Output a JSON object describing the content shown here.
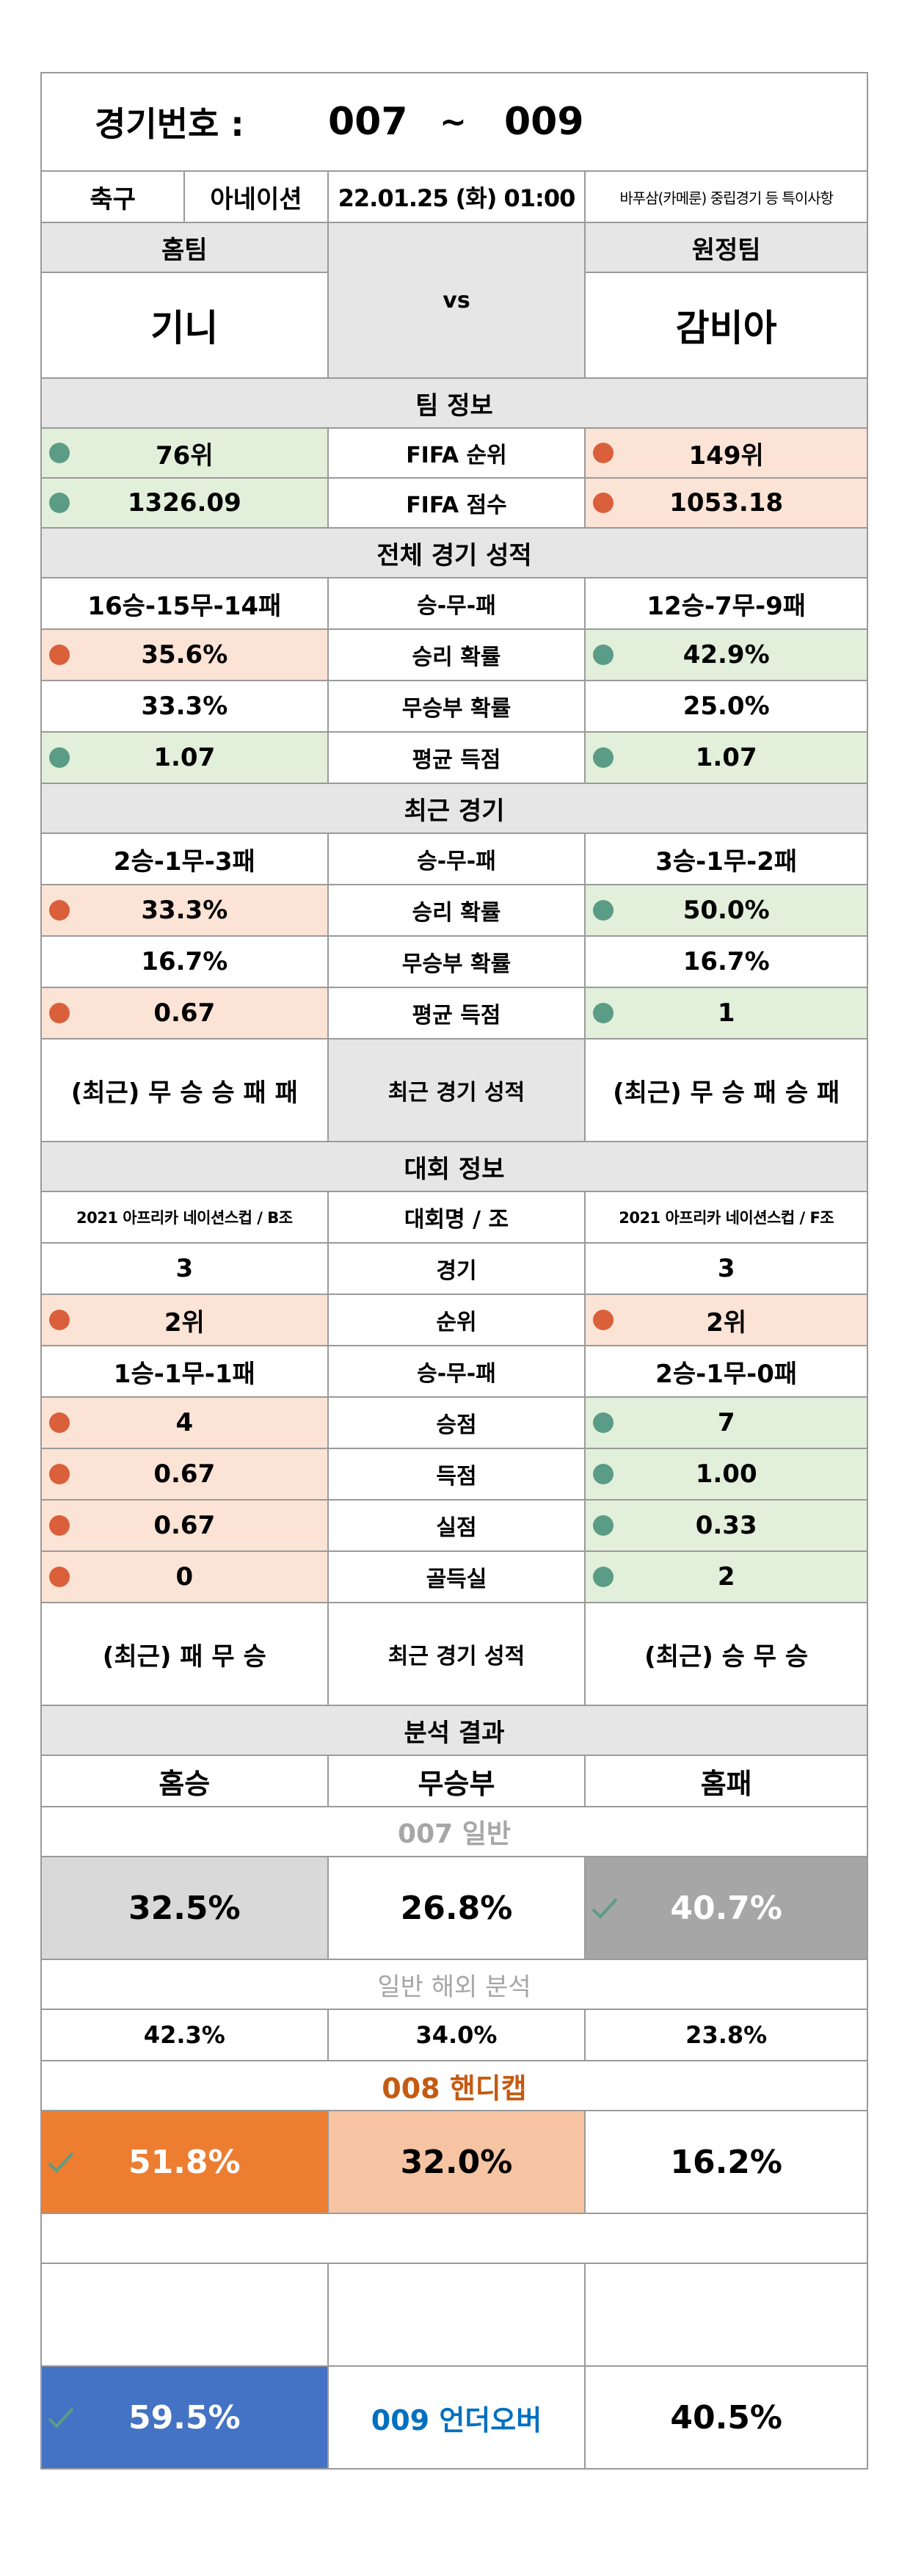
{
  "header": {
    "label": "경기번호 :",
    "from": "007",
    "sep": "~",
    "to": "009"
  },
  "match_info": {
    "sport": "축구",
    "league": "아네이션",
    "datetime": "22.01.25 (화) 01:00",
    "note": "바푸삼(카메룬) 중립경기 등 특이사항"
  },
  "teams": {
    "home_label": "홈팀",
    "away_label": "원정팀",
    "home": "기니",
    "vs": "vs",
    "away": "감비아"
  },
  "team_info": {
    "title": "팀 정보",
    "rows": [
      {
        "label": "FIFA 순위",
        "home": "76위",
        "away": "149위"
      },
      {
        "label": "FIFA 점수",
        "home": "1326.09",
        "away": "1053.18"
      }
    ]
  },
  "overall": {
    "title": "전체 경기 성적",
    "rows": [
      {
        "label": "승-무-패",
        "home": "16승-15무-14패",
        "away": "12승-7무-9패"
      },
      {
        "label": "승리 확률",
        "home": "35.6%",
        "away": "42.9%"
      },
      {
        "label": "무승부 확률",
        "home": "33.3%",
        "away": "25.0%"
      },
      {
        "label": "평균 득점",
        "home": "1.07",
        "away": "1.07"
      }
    ]
  },
  "recent": {
    "title": "최근 경기",
    "rows": [
      {
        "label": "승-무-패",
        "home": "2승-1무-3패",
        "away": "3승-1무-2패"
      },
      {
        "label": "승리 확률",
        "home": "33.3%",
        "away": "50.0%"
      },
      {
        "label": "무승부 확률",
        "home": "16.7%",
        "away": "16.7%"
      },
      {
        "label": "평균 득점",
        "home": "0.67",
        "away": "1"
      }
    ],
    "form": {
      "label": "최근 경기 성적",
      "home": "(최근) 무 승 승 패 패",
      "away": "(최근) 무 승 패 승 패"
    }
  },
  "tournament": {
    "title": "대회 정보",
    "rows": [
      {
        "label": "대회명 / 조",
        "home": "2021 아프리카 네이션스컵 / B조",
        "away": "2021 아프리카 네이션스컵 / F조"
      },
      {
        "label": "경기",
        "home": "3",
        "away": "3"
      },
      {
        "label": "순위",
        "home": "2위",
        "away": "2위"
      },
      {
        "label": "승-무-패",
        "home": "1승-1무-1패",
        "away": "2승-1무-0패"
      },
      {
        "label": "승점",
        "home": "4",
        "away": "7"
      },
      {
        "label": "득점",
        "home": "0.67",
        "away": "1.00"
      },
      {
        "label": "실점",
        "home": "0.67",
        "away": "0.33"
      },
      {
        "label": "골득실",
        "home": "0",
        "away": "2"
      }
    ],
    "form": {
      "label": "최근 경기 성적",
      "home": "(최근) 패 무 승",
      "away": "(최근) 승 무 승"
    }
  },
  "analysis": {
    "title": "분석 결과",
    "headers": {
      "home_win": "홈승",
      "draw": "무승부",
      "home_loss": "홈패"
    },
    "general": {
      "title": "007 일반",
      "home_win": "32.5%",
      "draw": "26.8%",
      "home_loss": "40.7%",
      "overseas_title": "일반 해외 분석",
      "overseas_home_win": "42.3%",
      "overseas_draw": "34.0%",
      "overseas_home_loss": "23.8%"
    },
    "handicap": {
      "title": "008 핸디캡",
      "home_win": "51.8%",
      "draw": "32.0%",
      "home_loss": "16.2%"
    },
    "underover": {
      "title": "009 언더오버",
      "under": "59.5%",
      "over": "40.5%"
    }
  },
  "colors": {
    "green_bg": "#e2efda",
    "pink_bg": "#fbe3d6",
    "green_dot": "#5b9c86",
    "red_dot": "#d9603b",
    "handicap_orange": "#ed7d31",
    "handicap_light": "#f6c4a2",
    "underover_blue": "#4472c4",
    "general_pick_grey": "#a6a6a6",
    "handicap_title": "#c55a11",
    "underover_title": "#0070c0"
  }
}
